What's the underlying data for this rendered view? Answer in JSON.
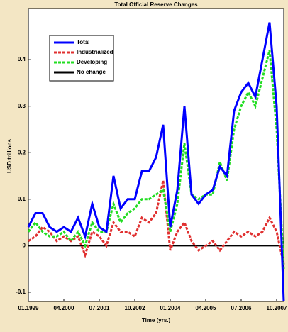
{
  "chart_data": {
    "type": "line",
    "title": "Total Official Reserve Changes",
    "x_label": "Time (yrs.)",
    "y_label": "USD trillions",
    "x": [
      0,
      1,
      2,
      3,
      4,
      5,
      6,
      7,
      8,
      9,
      10,
      11,
      12,
      13,
      14,
      15,
      16,
      17,
      18,
      19,
      20,
      21,
      22,
      23,
      24,
      25,
      26,
      27,
      28,
      29,
      30,
      31,
      32,
      33,
      34,
      35,
      36
    ],
    "xlim": [
      0,
      36
    ],
    "xticks": [
      {
        "value": 0,
        "label": "01.1999"
      },
      {
        "value": 5,
        "label": "04.2000"
      },
      {
        "value": 10,
        "label": "07.2001"
      },
      {
        "value": 15,
        "label": "10.2002"
      },
      {
        "value": 20,
        "label": "01.2004"
      },
      {
        "value": 25,
        "label": "04.2005"
      },
      {
        "value": 30,
        "label": "07.2006"
      },
      {
        "value": 35,
        "label": "10.2007"
      }
    ],
    "ylim": [
      -0.12,
      0.51
    ],
    "yticks": [
      -0.1,
      0,
      0.1,
      0.2,
      0.3,
      0.4
    ],
    "legend": "upper left",
    "series": [
      {
        "name": "Total",
        "color": "#0000ff",
        "dash": "solid",
        "values": [
          0.04,
          0.07,
          0.07,
          0.04,
          0.03,
          0.04,
          0.03,
          0.06,
          0.02,
          0.09,
          0.04,
          0.03,
          0.15,
          0.08,
          0.1,
          0.1,
          0.16,
          0.16,
          0.19,
          0.26,
          0.04,
          0.12,
          0.3,
          0.11,
          0.09,
          0.11,
          0.12,
          0.17,
          0.15,
          0.29,
          0.33,
          0.35,
          0.32,
          0.4,
          0.48,
          0.3,
          -0.12
        ]
      },
      {
        "name": "Industrialized",
        "color": "#e03030",
        "dash": "dashed",
        "values": [
          0.01,
          0.02,
          0.04,
          0.03,
          0.01,
          0.02,
          0.01,
          0.02,
          -0.02,
          0.03,
          0.02,
          0.0,
          0.05,
          0.03,
          0.03,
          0.02,
          0.06,
          0.05,
          0.07,
          0.14,
          -0.01,
          0.03,
          0.05,
          0.01,
          -0.01,
          0.0,
          0.01,
          -0.01,
          0.01,
          0.03,
          0.02,
          0.03,
          0.02,
          0.03,
          0.06,
          0.03,
          -0.04
        ]
      },
      {
        "name": "Developing",
        "color": "#22dd22",
        "dash": "dashed",
        "values": [
          0.03,
          0.05,
          0.03,
          0.02,
          0.02,
          0.03,
          0.01,
          0.03,
          0.0,
          0.05,
          0.03,
          0.03,
          0.09,
          0.05,
          0.07,
          0.08,
          0.1,
          0.1,
          0.11,
          0.12,
          0.03,
          0.09,
          0.22,
          0.11,
          0.1,
          0.11,
          0.11,
          0.18,
          0.14,
          0.25,
          0.3,
          0.33,
          0.3,
          0.36,
          0.42,
          0.25,
          -0.05
        ]
      },
      {
        "name": "No change",
        "color": "#000000",
        "dash": "solid",
        "values": [
          0,
          0,
          0,
          0,
          0,
          0,
          0,
          0,
          0,
          0,
          0,
          0,
          0,
          0,
          0,
          0,
          0,
          0,
          0,
          0,
          0,
          0,
          0,
          0,
          0,
          0,
          0,
          0,
          0,
          0,
          0,
          0,
          0,
          0,
          0,
          0,
          0
        ]
      }
    ]
  }
}
